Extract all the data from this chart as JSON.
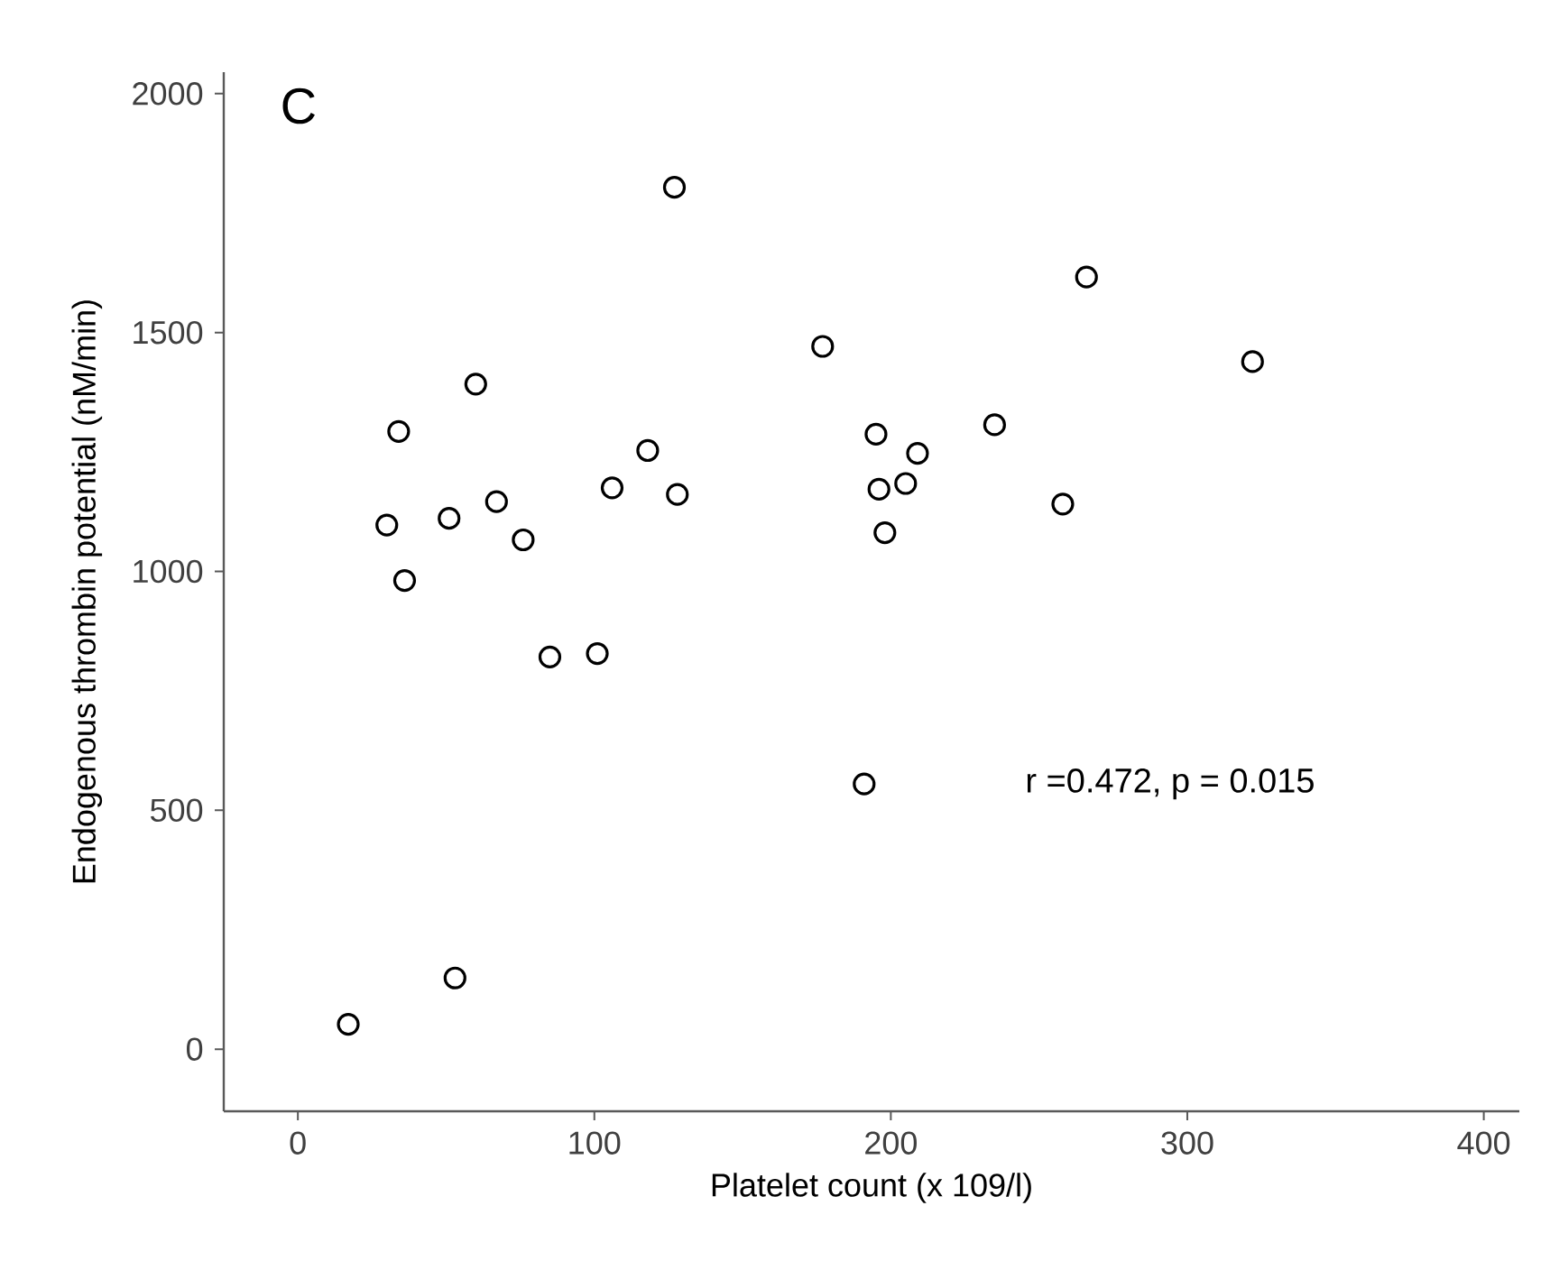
{
  "chart_data": {
    "type": "scatter",
    "title": "C",
    "xlabel": "Platelet count (x 109/l)",
    "ylabel": "Endogenous thrombin potential (nM/min)",
    "xlim": [
      -25,
      412
    ],
    "ylim": [
      -130,
      2045
    ],
    "xticks": [
      0,
      100,
      200,
      300,
      400
    ],
    "yticks": [
      0,
      500,
      1000,
      1500,
      2000
    ],
    "grid": false,
    "annotations": [
      "r =0.472, p = 0.015"
    ],
    "series": [
      {
        "color": "#000000",
        "x": [
          17,
          53,
          30,
          34,
          36,
          51,
          60,
          67,
          76,
          85,
          101,
          106,
          118,
          127,
          128,
          177,
          195,
          209,
          196,
          205,
          198,
          235,
          266,
          258,
          322,
          191
        ],
        "values": [
          52,
          149,
          1097,
          1293,
          981,
          1111,
          1392,
          1146,
          1066,
          821,
          828,
          1175,
          1253,
          1804,
          1161,
          1471,
          1287,
          1247,
          1172,
          1184,
          1081,
          1307,
          1616,
          1141,
          1439,
          555
        ]
      }
    ]
  }
}
